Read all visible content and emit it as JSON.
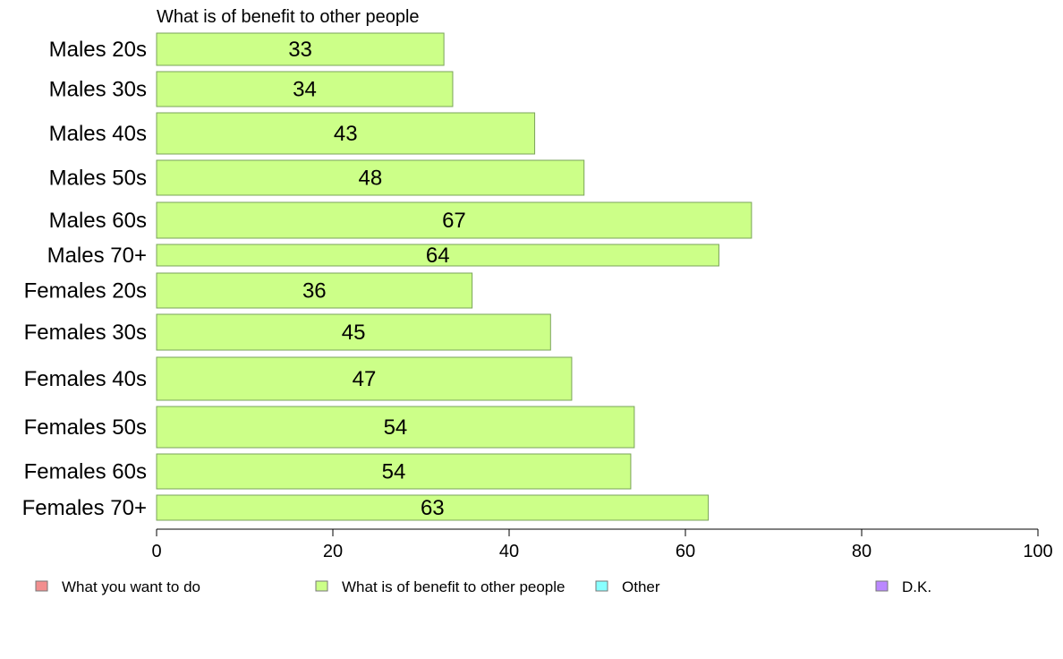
{
  "chart_data": {
    "type": "bar",
    "orientation": "horizontal",
    "title": "What is of benefit to other people",
    "categories": [
      "Males 20s",
      "Males 30s",
      "Males 40s",
      "Males 50s",
      "Males 60s",
      "Males 70+",
      "Females 20s",
      "Females 30s",
      "Females 40s",
      "Females 50s",
      "Females 60s",
      "Females 70+"
    ],
    "values": [
      32.6,
      33.6,
      42.9,
      48.5,
      67.5,
      63.8,
      35.8,
      44.7,
      47.1,
      54.2,
      53.8,
      62.6
    ],
    "value_labels": [
      "33",
      "34",
      "43",
      "48",
      "67",
      "64",
      "36",
      "45",
      "47",
      "54",
      "54",
      "63"
    ],
    "xlim": [
      0,
      100
    ],
    "xticks": [
      "0",
      "20",
      "40",
      "60",
      "80",
      "100"
    ],
    "grid": false,
    "bar_color": "#ccff88",
    "bar_border_color": "#7aa35a",
    "legend": {
      "placement": "bottom",
      "items": [
        {
          "label": "What you want to do",
          "color": "#f28f8f"
        },
        {
          "label": "What is of benefit to other people",
          "color": "#ccff88"
        },
        {
          "label": "Other",
          "color": "#88ffff"
        },
        {
          "label": "D.K.",
          "color": "#bb88ff"
        }
      ]
    }
  }
}
